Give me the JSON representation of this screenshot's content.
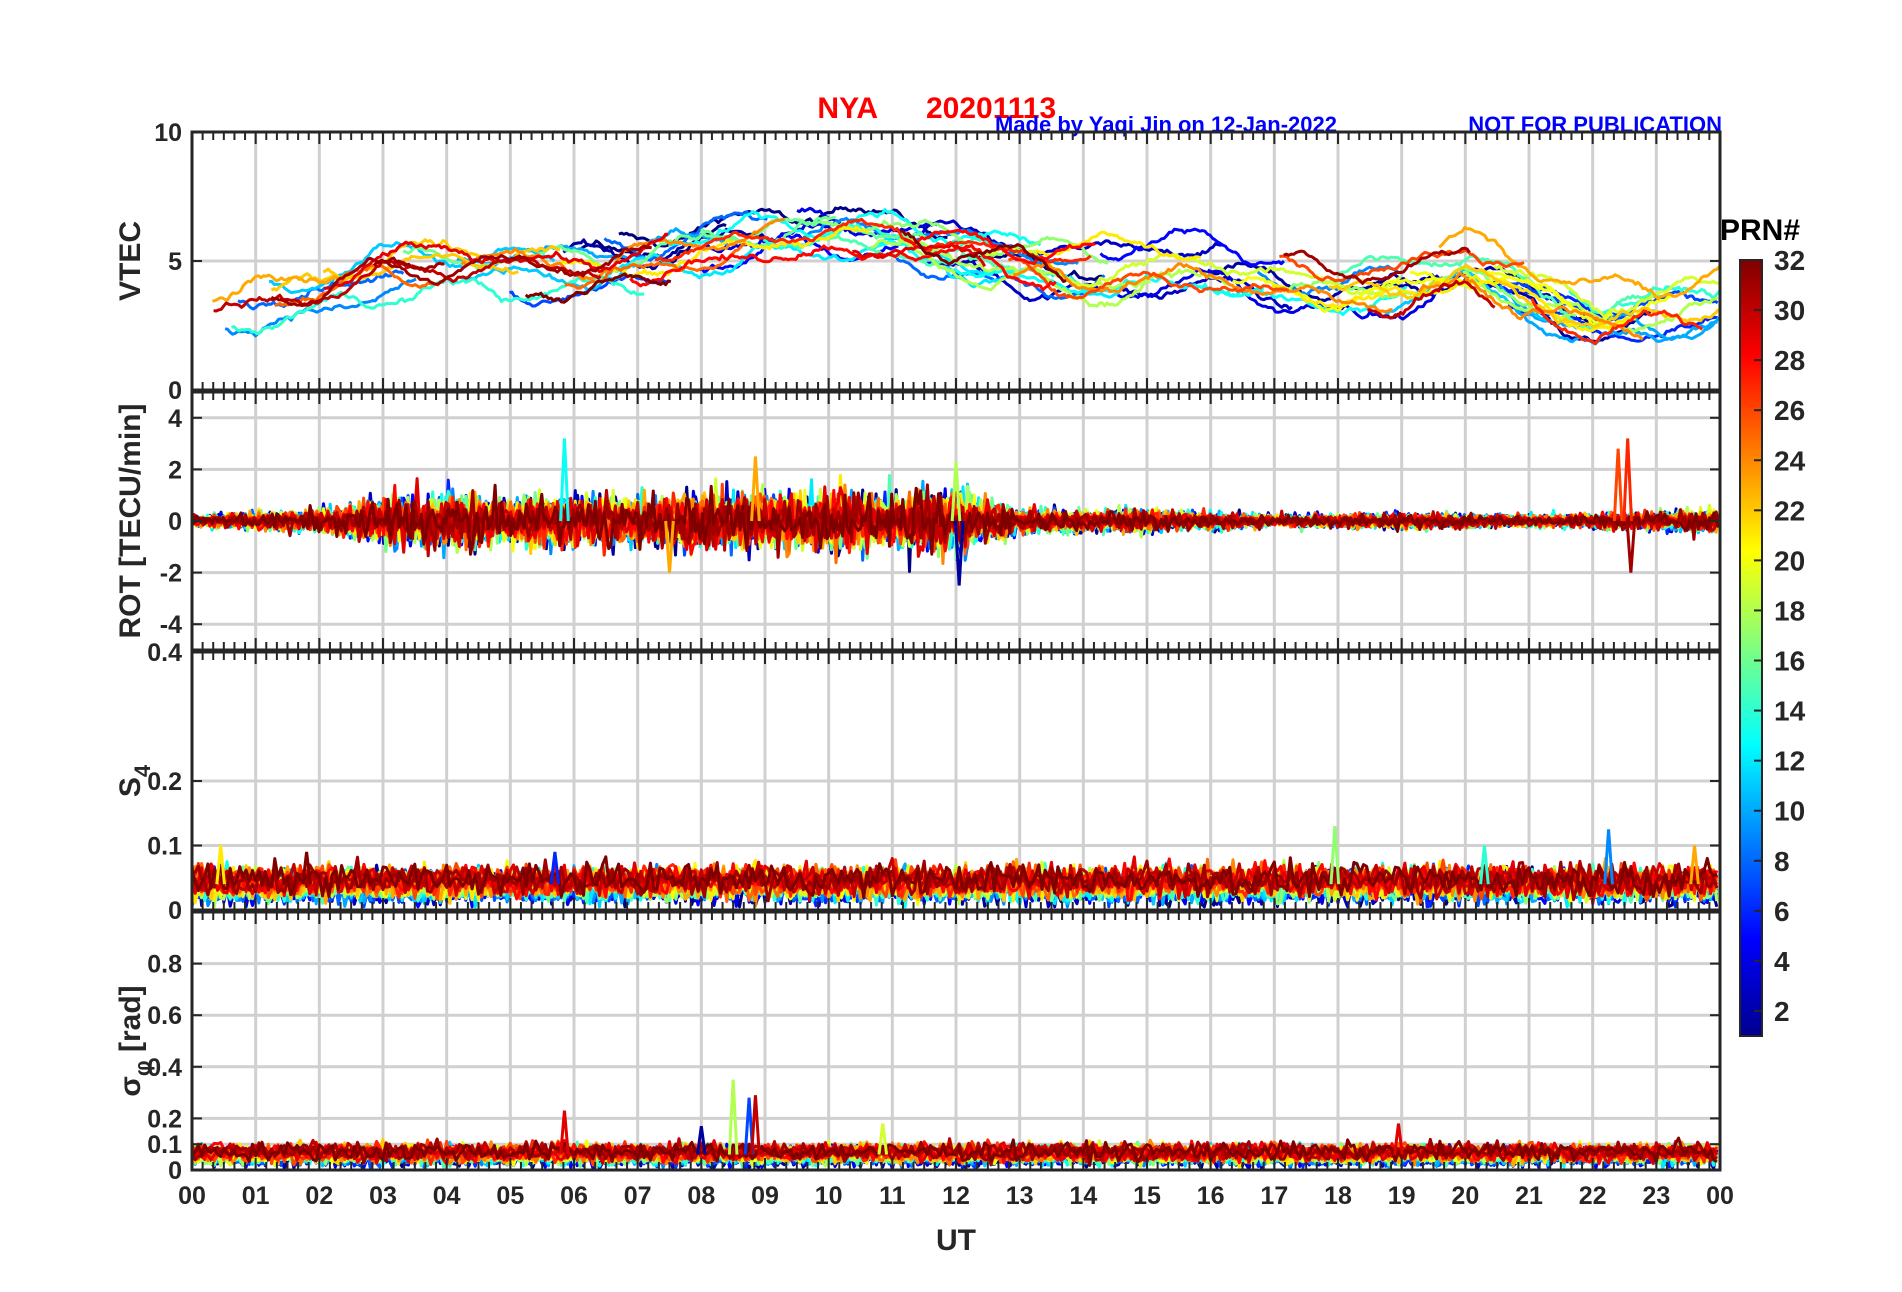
{
  "title": {
    "station": "NYA",
    "date": "20201113",
    "credit": "Made by Yaqi Jin on 12-Jan-2022",
    "notice": "NOT FOR PUBLICATION",
    "title_color": "#ff0000",
    "credit_color": "#0000ff"
  },
  "chart_data": [
    {
      "type": "line",
      "name": "vtec-panel",
      "ylabel": "VTEC",
      "ylim": [
        0,
        10
      ],
      "yticks": [
        0,
        5,
        10
      ],
      "ytick_labels": [
        "0",
        "5",
        "10"
      ],
      "grid": true,
      "baseline": [
        [
          0,
          3.3
        ],
        [
          1,
          3.3
        ],
        [
          2,
          3.8
        ],
        [
          3,
          4.6
        ],
        [
          4,
          4.8
        ],
        [
          5,
          4.6
        ],
        [
          6,
          4.7
        ],
        [
          7,
          4.9
        ],
        [
          8,
          5.3
        ],
        [
          9,
          5.8
        ],
        [
          10,
          5.8
        ],
        [
          11,
          5.9
        ],
        [
          12,
          5.4
        ],
        [
          13,
          4.9
        ],
        [
          14,
          4.6
        ],
        [
          15,
          4.8
        ],
        [
          16,
          4.9
        ],
        [
          17,
          4.2
        ],
        [
          18,
          3.9
        ],
        [
          19,
          4.2
        ],
        [
          20,
          4.9
        ],
        [
          21,
          3.8
        ],
        [
          22,
          2.8
        ],
        [
          23,
          3.0
        ],
        [
          24,
          3.4
        ]
      ],
      "spread": 0.9,
      "ripple": 0.35
    },
    {
      "type": "line",
      "name": "rot-panel",
      "ylabel": "ROT [TECU/min]",
      "ylim": [
        -5,
        5
      ],
      "yticks": [
        -4,
        -2,
        0,
        2,
        4
      ],
      "ytick_labels": [
        "-4",
        "-2",
        "0",
        "2",
        "4"
      ],
      "grid": true,
      "noise_profile": [
        [
          0,
          0.15
        ],
        [
          2,
          0.3
        ],
        [
          3,
          0.6
        ],
        [
          4,
          0.7
        ],
        [
          5,
          0.6
        ],
        [
          6,
          0.7
        ],
        [
          7,
          0.6
        ],
        [
          8,
          0.8
        ],
        [
          9,
          0.7
        ],
        [
          10,
          0.8
        ],
        [
          11,
          0.7
        ],
        [
          12,
          0.9
        ],
        [
          13,
          0.3
        ],
        [
          15,
          0.3
        ],
        [
          17,
          0.15
        ],
        [
          19,
          0.2
        ],
        [
          21,
          0.15
        ],
        [
          22.5,
          0.2
        ],
        [
          24,
          0.3
        ]
      ],
      "spikes": [
        {
          "x": 5.85,
          "value": 3.2
        },
        {
          "x": 7.5,
          "value": -2.0
        },
        {
          "x": 8.85,
          "value": 2.5
        },
        {
          "x": 12.05,
          "value": -2.5
        },
        {
          "x": 12.0,
          "value": 2.3
        },
        {
          "x": 22.4,
          "value": 2.8
        },
        {
          "x": 22.55,
          "value": 3.2
        },
        {
          "x": 22.6,
          "value": -2.0
        }
      ]
    },
    {
      "type": "line",
      "name": "s4-panel",
      "ylabel": "S",
      "ylabel_sub": "4",
      "ylim": [
        0,
        0.4
      ],
      "yticks": [
        0,
        0.1,
        0.2,
        0.4
      ],
      "ytick_labels": [
        "0",
        "0.1",
        "0.2",
        "0.4"
      ],
      "grid": true,
      "base_level": 0.04,
      "noise_amp": 0.012,
      "spikes": [
        {
          "x": 0.45,
          "value": 0.1
        },
        {
          "x": 1.8,
          "value": 0.09
        },
        {
          "x": 5.7,
          "value": 0.09
        },
        {
          "x": 17.95,
          "value": 0.13
        },
        {
          "x": 20.3,
          "value": 0.1
        },
        {
          "x": 22.25,
          "value": 0.125
        },
        {
          "x": 23.6,
          "value": 0.1
        }
      ]
    },
    {
      "type": "line",
      "name": "sigma-phi-panel",
      "ylabel": "σ",
      "ylabel_sub": "φ",
      "ylabel_unit": "[rad]",
      "ylim": [
        0,
        1
      ],
      "yticks": [
        0,
        0.1,
        0.2,
        0.4,
        0.6,
        0.8
      ],
      "ytick_labels": [
        "0",
        "0.1",
        "0.2",
        "0.4",
        "0.6",
        "0.8"
      ],
      "grid": true,
      "base_level": 0.06,
      "noise_amp": 0.018,
      "spikes": [
        {
          "x": 5.85,
          "value": 0.23
        },
        {
          "x": 8.0,
          "value": 0.17
        },
        {
          "x": 8.5,
          "value": 0.35
        },
        {
          "x": 8.75,
          "value": 0.28
        },
        {
          "x": 8.85,
          "value": 0.29
        },
        {
          "x": 10.85,
          "value": 0.18
        },
        {
          "x": 18.95,
          "value": 0.18
        }
      ]
    }
  ],
  "x_axis": {
    "label": "UT",
    "xlim": [
      0,
      24
    ],
    "tick_labels": [
      "00",
      "01",
      "02",
      "03",
      "04",
      "05",
      "06",
      "07",
      "08",
      "09",
      "10",
      "11",
      "12",
      "13",
      "14",
      "15",
      "16",
      "17",
      "18",
      "19",
      "20",
      "21",
      "22",
      "23",
      "00"
    ]
  },
  "colorbar": {
    "label": "PRN#",
    "range": [
      1,
      32
    ],
    "ticks": [
      2,
      4,
      6,
      8,
      10,
      12,
      14,
      16,
      18,
      20,
      22,
      24,
      26,
      28,
      30,
      32
    ],
    "tick_labels": [
      "2",
      "4",
      "6",
      "8",
      "10",
      "12",
      "14",
      "16",
      "18",
      "20",
      "22",
      "24",
      "26",
      "28",
      "30",
      "32"
    ],
    "colormap": "jet"
  },
  "prn_count": 32
}
